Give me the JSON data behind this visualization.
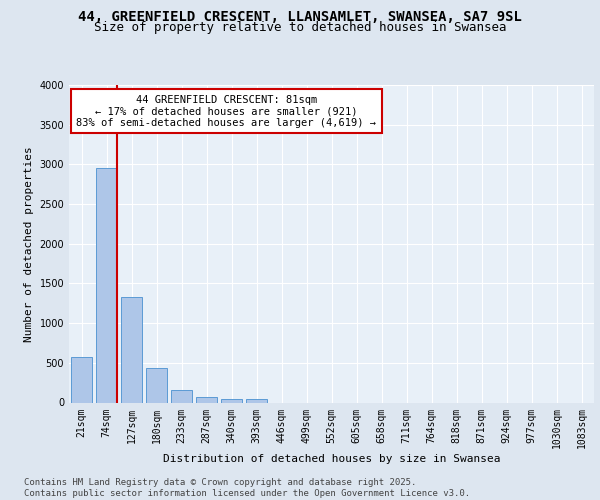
{
  "title_line1": "44, GREENFIELD CRESCENT, LLANSAMLET, SWANSEA, SA7 9SL",
  "title_line2": "Size of property relative to detached houses in Swansea",
  "xlabel": "Distribution of detached houses by size in Swansea",
  "ylabel": "Number of detached properties",
  "bar_labels": [
    "21sqm",
    "74sqm",
    "127sqm",
    "180sqm",
    "233sqm",
    "287sqm",
    "340sqm",
    "393sqm",
    "446sqm",
    "499sqm",
    "552sqm",
    "605sqm",
    "658sqm",
    "711sqm",
    "764sqm",
    "818sqm",
    "871sqm",
    "924sqm",
    "977sqm",
    "1030sqm",
    "1083sqm"
  ],
  "bar_values": [
    575,
    2960,
    1330,
    430,
    155,
    75,
    50,
    50,
    0,
    0,
    0,
    0,
    0,
    0,
    0,
    0,
    0,
    0,
    0,
    0,
    0
  ],
  "bar_color": "#aec6e8",
  "bar_edge_color": "#5b9bd5",
  "annotation_box_text": "44 GREENFIELD CRESCENT: 81sqm\n← 17% of detached houses are smaller (921)\n83% of semi-detached houses are larger (4,619) →",
  "annotation_box_color": "#cc0000",
  "vline_color": "#cc0000",
  "vline_x": 1.0,
  "ylim": [
    0,
    4000
  ],
  "yticks": [
    0,
    500,
    1000,
    1500,
    2000,
    2500,
    3000,
    3500,
    4000
  ],
  "background_color": "#dde6f0",
  "plot_background": "#e8f0f8",
  "grid_color": "#ffffff",
  "footer_text": "Contains HM Land Registry data © Crown copyright and database right 2025.\nContains public sector information licensed under the Open Government Licence v3.0.",
  "title_fontsize": 10,
  "subtitle_fontsize": 9,
  "ylabel_fontsize": 8,
  "xlabel_fontsize": 8,
  "tick_fontsize": 7,
  "annotation_fontsize": 7.5,
  "footer_fontsize": 6.5
}
